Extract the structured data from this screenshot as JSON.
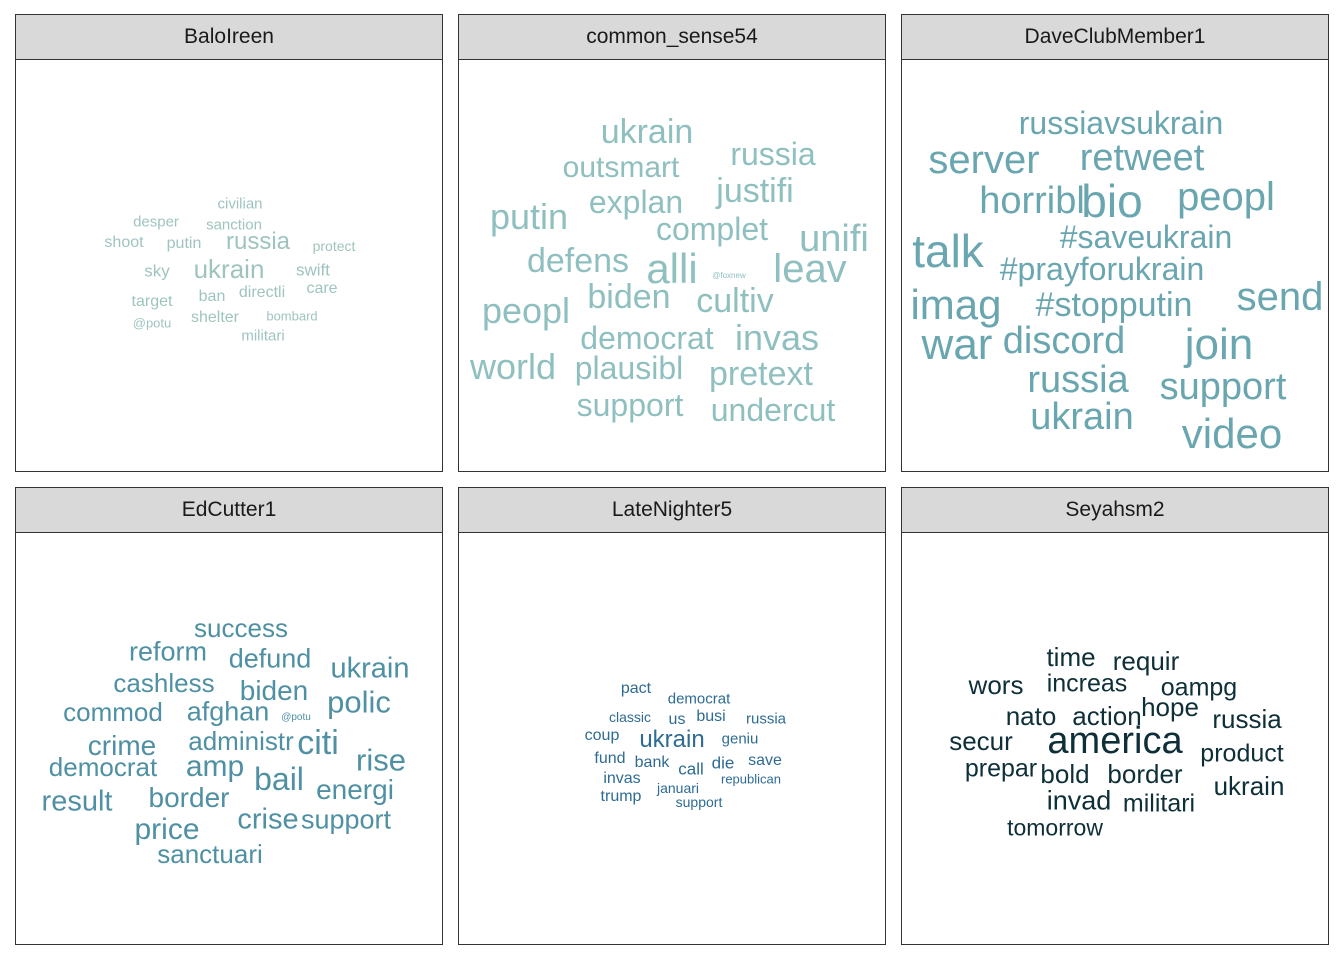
{
  "chart_data": {
    "type": "wordcloud",
    "panels": [
      {
        "title": "BaloIreen",
        "color": "#9fc4bf",
        "words": [
          {
            "text": "civilian",
            "size": 15
          },
          {
            "text": "desper",
            "size": 15
          },
          {
            "text": "sanction",
            "size": 15
          },
          {
            "text": "shoot",
            "size": 16
          },
          {
            "text": "putin",
            "size": 16
          },
          {
            "text": "russia",
            "size": 24
          },
          {
            "text": "protect",
            "size": 14
          },
          {
            "text": "sky",
            "size": 17
          },
          {
            "text": "ukrain",
            "size": 26
          },
          {
            "text": "swift",
            "size": 17
          },
          {
            "text": "target",
            "size": 16
          },
          {
            "text": "ban",
            "size": 16
          },
          {
            "text": "directli",
            "size": 16
          },
          {
            "text": "care",
            "size": 16
          },
          {
            "text": "@potu",
            "size": 13
          },
          {
            "text": "shelter",
            "size": 16
          },
          {
            "text": "bombard",
            "size": 13
          },
          {
            "text": "militari",
            "size": 15
          }
        ]
      },
      {
        "title": "common_sense54",
        "color": "#8fbfbf",
        "words": [
          {
            "text": "ukrain",
            "size": 34
          },
          {
            "text": "russia",
            "size": 32
          },
          {
            "text": "outsmart",
            "size": 30
          },
          {
            "text": "explan",
            "size": 32
          },
          {
            "text": "justifi",
            "size": 34
          },
          {
            "text": "putin",
            "size": 36
          },
          {
            "text": "complet",
            "size": 32
          },
          {
            "text": "unifi",
            "size": 38
          },
          {
            "text": "defens",
            "size": 34
          },
          {
            "text": "alli",
            "size": 42
          },
          {
            "text": "leav",
            "size": 40
          },
          {
            "text": "@foxnew",
            "size": 8
          },
          {
            "text": "biden",
            "size": 34
          },
          {
            "text": "cultiv",
            "size": 34
          },
          {
            "text": "peopl",
            "size": 36
          },
          {
            "text": "democrat",
            "size": 32
          },
          {
            "text": "invas",
            "size": 36
          },
          {
            "text": "world",
            "size": 36
          },
          {
            "text": "plausibl",
            "size": 32
          },
          {
            "text": "pretext",
            "size": 34
          },
          {
            "text": "support",
            "size": 32
          },
          {
            "text": "undercut",
            "size": 32
          }
        ]
      },
      {
        "title": "DaveClubMember1",
        "color": "#6aa6b0",
        "words": [
          {
            "text": "russiavsukrain",
            "size": 32
          },
          {
            "text": "server",
            "size": 40
          },
          {
            "text": "retweet",
            "size": 38
          },
          {
            "text": "horribl",
            "size": 38
          },
          {
            "text": "bio",
            "size": 46
          },
          {
            "text": "peopl",
            "size": 40
          },
          {
            "text": "talk",
            "size": 46
          },
          {
            "text": "#saveukrain",
            "size": 32
          },
          {
            "text": "#prayforukrain",
            "size": 32
          },
          {
            "text": "imag",
            "size": 42
          },
          {
            "text": "#stopputin",
            "size": 34
          },
          {
            "text": "send",
            "size": 40
          },
          {
            "text": "war",
            "size": 44
          },
          {
            "text": "discord",
            "size": 38
          },
          {
            "text": "join",
            "size": 44
          },
          {
            "text": "russia",
            "size": 38
          },
          {
            "text": "support",
            "size": 38
          },
          {
            "text": "ukrain",
            "size": 38
          },
          {
            "text": "video",
            "size": 42
          }
        ]
      },
      {
        "title": "EdCutter1",
        "color": "#4f90a3",
        "words": [
          {
            "text": "success",
            "size": 26
          },
          {
            "text": "reform",
            "size": 27
          },
          {
            "text": "defund",
            "size": 27
          },
          {
            "text": "ukrain",
            "size": 29
          },
          {
            "text": "cashless",
            "size": 26
          },
          {
            "text": "biden",
            "size": 28
          },
          {
            "text": "polic",
            "size": 31
          },
          {
            "text": "commod",
            "size": 26
          },
          {
            "text": "afghan",
            "size": 27
          },
          {
            "text": "@potu",
            "size": 10
          },
          {
            "text": "crime",
            "size": 28
          },
          {
            "text": "administr",
            "size": 26
          },
          {
            "text": "citi",
            "size": 34
          },
          {
            "text": "rise",
            "size": 31
          },
          {
            "text": "democrat",
            "size": 26
          },
          {
            "text": "amp",
            "size": 30
          },
          {
            "text": "bail",
            "size": 32
          },
          {
            "text": "energi",
            "size": 28
          },
          {
            "text": "result",
            "size": 29
          },
          {
            "text": "border",
            "size": 28
          },
          {
            "text": "price",
            "size": 30
          },
          {
            "text": "crise",
            "size": 29
          },
          {
            "text": "support",
            "size": 27
          },
          {
            "text": "sanctuari",
            "size": 26
          }
        ]
      },
      {
        "title": "LateNighter5",
        "color": "#2e6b93",
        "words": [
          {
            "text": "pact",
            "size": 16
          },
          {
            "text": "democrat",
            "size": 15
          },
          {
            "text": "classic",
            "size": 14
          },
          {
            "text": "us",
            "size": 16
          },
          {
            "text": "busi",
            "size": 16
          },
          {
            "text": "russia",
            "size": 15
          },
          {
            "text": "coup",
            "size": 16
          },
          {
            "text": "ukrain",
            "size": 24
          },
          {
            "text": "geniu",
            "size": 15
          },
          {
            "text": "fund",
            "size": 16
          },
          {
            "text": "bank",
            "size": 16
          },
          {
            "text": "call",
            "size": 17
          },
          {
            "text": "die",
            "size": 17
          },
          {
            "text": "save",
            "size": 16
          },
          {
            "text": "invas",
            "size": 16
          },
          {
            "text": "republican",
            "size": 13
          },
          {
            "text": "januari",
            "size": 14
          },
          {
            "text": "trump",
            "size": 16
          },
          {
            "text": "support",
            "size": 14
          }
        ]
      },
      {
        "title": "Seyahsm2",
        "color": "#0e2f38",
        "words": [
          {
            "text": "time",
            "size": 26
          },
          {
            "text": "requir",
            "size": 26
          },
          {
            "text": "wors",
            "size": 26
          },
          {
            "text": "increas",
            "size": 25
          },
          {
            "text": "oampg",
            "size": 25
          },
          {
            "text": "nato",
            "size": 26
          },
          {
            "text": "action",
            "size": 26
          },
          {
            "text": "hope",
            "size": 26
          },
          {
            "text": "russia",
            "size": 26
          },
          {
            "text": "secur",
            "size": 26
          },
          {
            "text": "america",
            "size": 38
          },
          {
            "text": "product",
            "size": 25
          },
          {
            "text": "prepar",
            "size": 25
          },
          {
            "text": "bold",
            "size": 26
          },
          {
            "text": "border",
            "size": 26
          },
          {
            "text": "ukrain",
            "size": 26
          },
          {
            "text": "invad",
            "size": 27
          },
          {
            "text": "militari",
            "size": 25
          },
          {
            "text": "tomorrow",
            "size": 23
          }
        ]
      }
    ]
  }
}
